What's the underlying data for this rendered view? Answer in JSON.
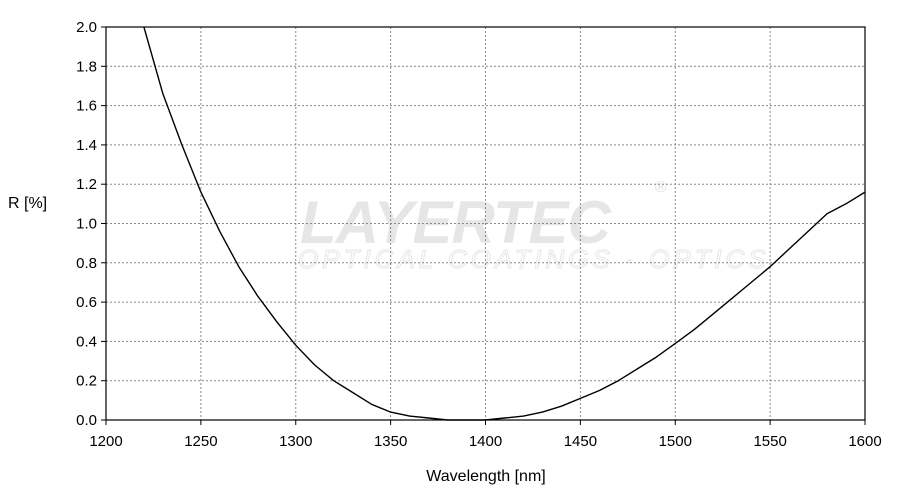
{
  "chart_data": {
    "type": "line",
    "title": "",
    "xlabel": "Wavelength [nm]",
    "ylabel": "R [%]",
    "xlim": [
      1200,
      1600
    ],
    "ylim": [
      0.0,
      2.0
    ],
    "x_ticks": [
      "1200",
      "1250",
      "1300",
      "1350",
      "1400",
      "1450",
      "1500",
      "1550",
      "1600"
    ],
    "y_ticks": [
      "0.0",
      "0.2",
      "0.4",
      "0.6",
      "0.8",
      "1.0",
      "1.2",
      "1.4",
      "1.6",
      "1.8",
      "2.0"
    ],
    "grid": true,
    "legend": "none",
    "line_color": "#000000",
    "series": [
      {
        "x": [
          1220,
          1230,
          1240,
          1250,
          1260,
          1270,
          1280,
          1290,
          1300,
          1310,
          1320,
          1330,
          1340,
          1350,
          1360,
          1370,
          1380,
          1390,
          1400,
          1410,
          1420,
          1430,
          1440,
          1450,
          1460,
          1470,
          1480,
          1490,
          1500,
          1510,
          1520,
          1530,
          1540,
          1550,
          1560,
          1570,
          1580,
          1590,
          1600
        ],
        "values": [
          2.0,
          1.66,
          1.4,
          1.16,
          0.96,
          0.78,
          0.63,
          0.5,
          0.38,
          0.28,
          0.2,
          0.14,
          0.08,
          0.04,
          0.02,
          0.01,
          0.0,
          0.0,
          0.0,
          0.01,
          0.02,
          0.04,
          0.07,
          0.11,
          0.15,
          0.2,
          0.26,
          0.32,
          0.39,
          0.46,
          0.54,
          0.62,
          0.7,
          0.78,
          0.87,
          0.96,
          1.05,
          1.1,
          1.16
        ]
      }
    ]
  },
  "watermark": {
    "brand": "LAYERTEC",
    "registered": "®",
    "tagline": "OPTICAL COATINGS · OPTICS",
    "color": "#e6e6e6"
  }
}
